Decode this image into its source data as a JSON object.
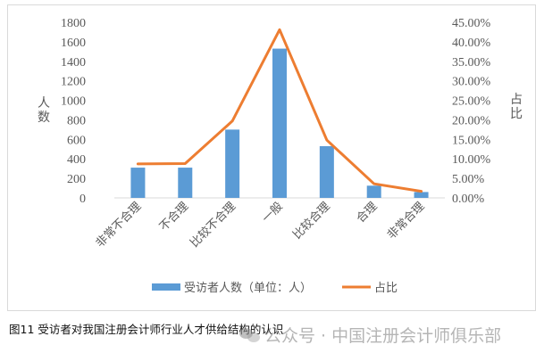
{
  "chart_data": {
    "type": "bar+line",
    "categories": [
      "非常不合理",
      "不合理",
      "比较不合理",
      "一般",
      "比较合理",
      "合理",
      "非常合理"
    ],
    "series": [
      {
        "name": "受访者人数（单位：人）",
        "type": "bar",
        "axis": "left",
        "color": "#5b9bd5",
        "values": [
          310,
          310,
          700,
          1530,
          530,
          125,
          60
        ]
      },
      {
        "name": "占比",
        "type": "line",
        "axis": "right",
        "color": "#ed7d31",
        "values": [
          8.7,
          8.8,
          19.7,
          43.1,
          14.8,
          3.6,
          1.7
        ]
      }
    ],
    "ylabel": "人数",
    "y2label": "占比",
    "ylim": [
      0,
      1800
    ],
    "y2lim": [
      0,
      45
    ],
    "yticks": [
      "0",
      "200",
      "400",
      "600",
      "800",
      "1000",
      "1200",
      "1400",
      "1600",
      "1800"
    ],
    "y2ticks": [
      "0.00%",
      "5.00%",
      "10.00%",
      "15.00%",
      "20.00%",
      "25.00%",
      "30.00%",
      "35.00%",
      "40.00%",
      "45.00%"
    ],
    "grid": false,
    "legend": "bottom"
  },
  "caption": "图11 受访者对我国注册会计师行业人才供给结构的认识",
  "watermark": "公众号 · 中国注册会计师俱乐部"
}
